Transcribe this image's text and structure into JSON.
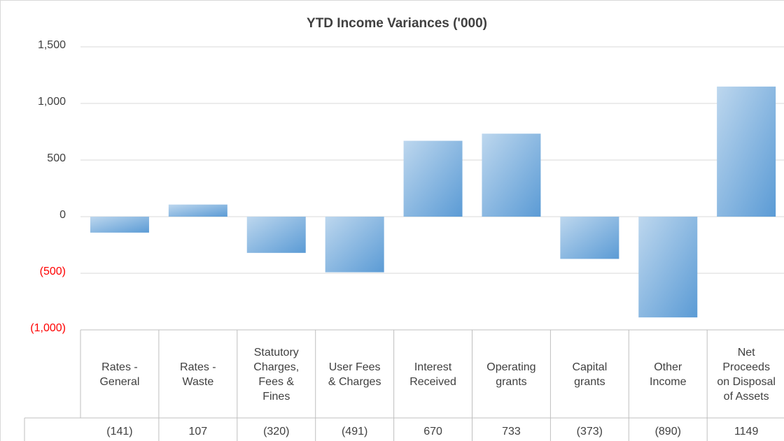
{
  "chart_data": {
    "type": "bar",
    "title": "YTD Income Variances ('000)",
    "categories": [
      "Rates - General",
      "Rates - Waste",
      "Statutory Charges, Fees & Fines",
      "User Fees & Charges",
      "Interest Received",
      "Operating grants",
      "Capital grants",
      "Other Income",
      "Net Proceeds on Disposal of Assets"
    ],
    "values": [
      -141,
      107,
      -320,
      -491,
      670,
      733,
      -373,
      -890,
      1149
    ],
    "value_labels": [
      "(141)",
      "107",
      "(320)",
      "(491)",
      "670",
      "733",
      "(373)",
      "(890)",
      "1149"
    ],
    "color": "#5b9bd5",
    "negative_tick_color": "#ff0000",
    "ylim": [
      -1000,
      1500
    ],
    "yticks": [
      {
        "value": -1000,
        "label": "(1,000)"
      },
      {
        "value": -500,
        "label": "(500)"
      },
      0,
      500,
      {
        "value": 1000,
        "label": "1,000"
      },
      {
        "value": 1500,
        "label": "1,500"
      }
    ],
    "grid": true
  }
}
